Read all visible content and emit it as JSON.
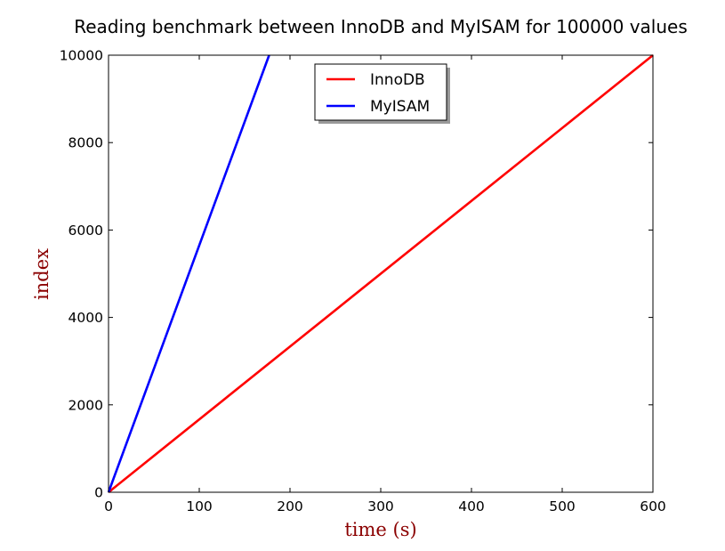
{
  "chart_data": {
    "type": "line",
    "title": "Reading benchmark between InnoDB and MyISAM for 100000 values",
    "xlabel": "time (s)",
    "ylabel": "index",
    "xlim": [
      0,
      600
    ],
    "ylim": [
      0,
      10000
    ],
    "xticks": [
      "0",
      "100",
      "200",
      "300",
      "400",
      "500",
      "600"
    ],
    "yticks": [
      "0",
      "2000",
      "4000",
      "6000",
      "8000",
      "10000"
    ],
    "grid": false,
    "legend_position": "top-center",
    "axis_label_color": "#8b0000",
    "series": [
      {
        "name": "InnoDB",
        "color": "#ff0000",
        "x": [
          0,
          600
        ],
        "y": [
          0,
          10000
        ]
      },
      {
        "name": "MyISAM",
        "color": "#0000ff",
        "x": [
          0,
          177
        ],
        "y": [
          0,
          10000
        ]
      }
    ]
  }
}
